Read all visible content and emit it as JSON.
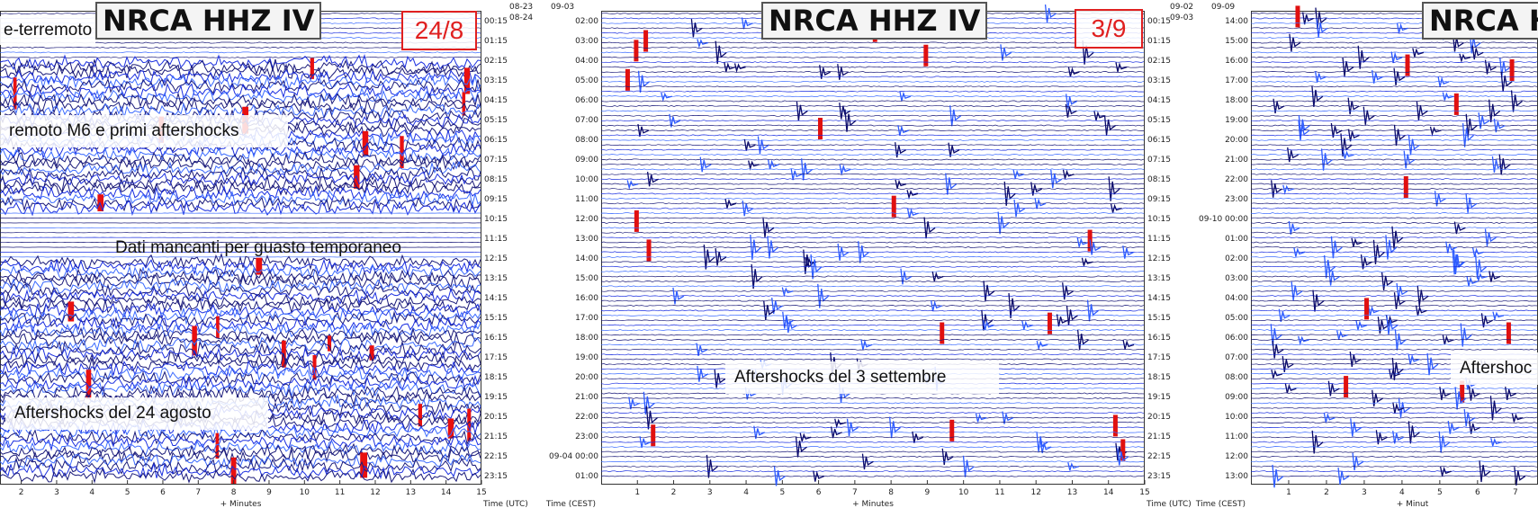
{
  "chart_data": [
    {
      "type": "heatmap",
      "title": "NRCA HHZ IV",
      "date_badge": "24/8",
      "hdr_top": "08-23",
      "hdr_bottom": "08-24",
      "hdr_right": "",
      "xlabel": "+ Minutes",
      "time_label_right": "Time (UTC)",
      "time_label_left": "",
      "x_ticks": [
        2,
        3,
        4,
        5,
        6,
        7,
        8,
        9,
        10,
        11,
        12,
        13,
        14,
        15
      ],
      "x_min": 1.4,
      "x_max": 15,
      "left_hours": [],
      "right_hours": [
        "00:15",
        "01:15",
        "02:15",
        "03:15",
        "04:15",
        "05:15",
        "06:15",
        "07:15",
        "08:15",
        "09:15",
        "10:15",
        "11:15",
        "12:15",
        "13:15",
        "14:15",
        "15:15",
        "16:15",
        "17:15",
        "18:15",
        "19:15",
        "20:15",
        "21:15",
        "22:15",
        "23:15"
      ],
      "annotations": [
        "e-terremoto",
        "remoto M6 e primi aftershocks",
        "Dati mancanti per guasto temporaneo",
        "Aftershocks del 24 agosto"
      ]
    },
    {
      "type": "heatmap",
      "title": "NRCA HHZ IV",
      "date_badge": "3/9",
      "hdr_top": "08-23",
      "hdr_bottom": "",
      "hdr_right": "09-03",
      "xlabel": "+ Minutes",
      "time_label_right": "Time (UTC)",
      "time_label_left": "Time (CEST)",
      "x_ticks": [
        1,
        2,
        3,
        4,
        5,
        6,
        7,
        8,
        9,
        10,
        11,
        12,
        13,
        14,
        15
      ],
      "x_min": 0,
      "x_max": 15,
      "left_hours": [
        "02:00",
        "03:00",
        "04:00",
        "05:00",
        "06:00",
        "07:00",
        "08:00",
        "09:00",
        "10:00",
        "11:00",
        "12:00",
        "13:00",
        "14:00",
        "15:00",
        "16:00",
        "17:00",
        "18:00",
        "19:00",
        "20:00",
        "21:00",
        "22:00",
        "23:00",
        "09-04 00:00",
        "01:00"
      ],
      "right_hours": [
        "00:15",
        "01:15",
        "02:15",
        "03:15",
        "04:15",
        "05:15",
        "06:15",
        "07:15",
        "08:15",
        "09:15",
        "10:15",
        "11:15",
        "12:15",
        "13:15",
        "14:15",
        "15:15",
        "16:15",
        "17:15",
        "18:15",
        "19:15",
        "20:15",
        "21:15",
        "22:15",
        "23:15"
      ],
      "annotations": [
        "Aftershocks del 3 settembre"
      ]
    },
    {
      "type": "heatmap",
      "title": "NRCA H",
      "date_badge": "",
      "hdr_top": "09-02",
      "hdr_bottom": "09-03",
      "hdr_right": "09-09",
      "xlabel": "+ Minut",
      "time_label_right": "",
      "time_label_left": "Time (CEST)",
      "x_ticks": [
        1,
        2,
        3,
        4,
        5,
        6,
        7
      ],
      "x_min": 0,
      "x_max": 7.6,
      "left_hours": [
        "14:00",
        "15:00",
        "16:00",
        "17:00",
        "18:00",
        "19:00",
        "20:00",
        "21:00",
        "22:00",
        "23:00",
        "09-10 00:00",
        "01:00",
        "02:00",
        "03:00",
        "04:00",
        "05:00",
        "06:00",
        "07:00",
        "08:00",
        "09:00",
        "10:00",
        "11:00",
        "12:00",
        "13:00"
      ],
      "right_hours": [],
      "annotations": [
        "Aftershoc"
      ]
    }
  ]
}
